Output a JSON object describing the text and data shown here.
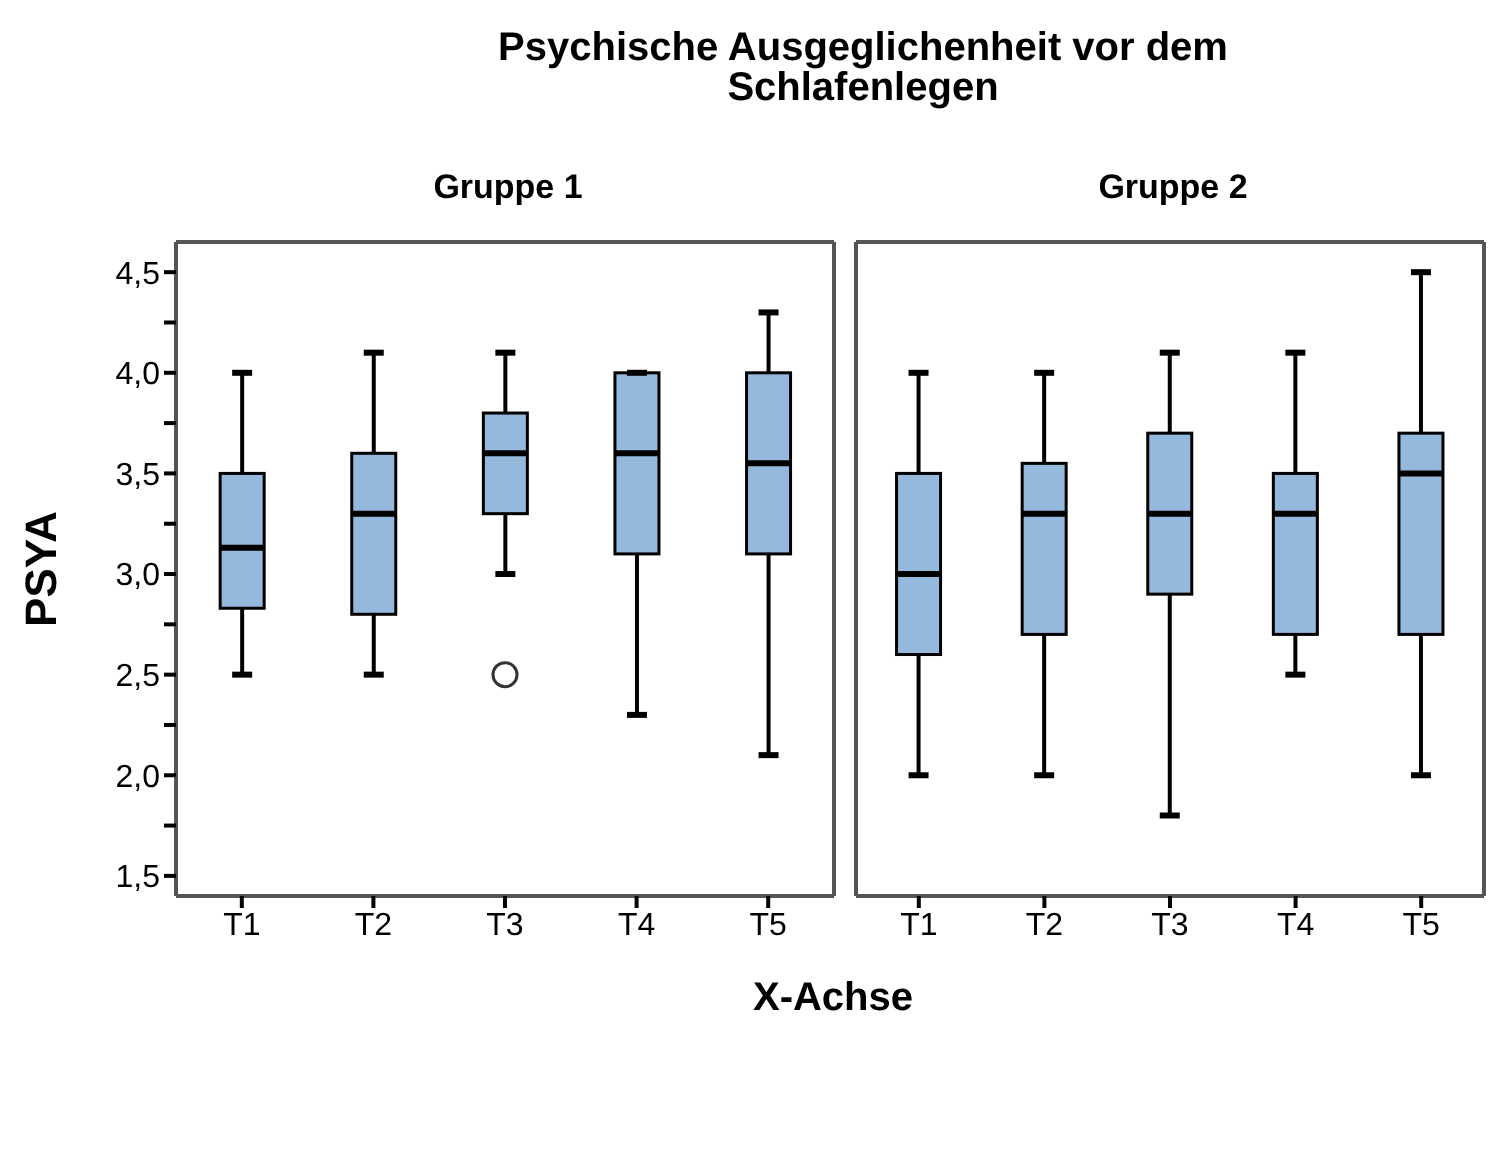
{
  "chart_data": [
    {
      "type": "box",
      "title": "Psychische Ausgeglichenheit vor dem Schlafenlegen",
      "subtitle": "Gruppe 1",
      "xlabel": "X-Achse",
      "ylabel": "PSYA",
      "categories": [
        "T1",
        "T2",
        "T3",
        "T4",
        "T5"
      ],
      "color": "#95b9dc",
      "boxes": [
        {
          "low": 2.5,
          "q1": 2.83,
          "median": 3.13,
          "q3": 3.5,
          "high": 4.0
        },
        {
          "low": 2.5,
          "q1": 2.8,
          "median": 3.3,
          "q3": 3.6,
          "high": 4.1
        },
        {
          "low": 3.0,
          "q1": 3.3,
          "median": 3.6,
          "q3": 3.8,
          "high": 4.1,
          "outliers": [
            2.5
          ]
        },
        {
          "low": 2.3,
          "q1": 3.1,
          "median": 3.6,
          "q3": 4.0,
          "high": 4.0
        },
        {
          "low": 2.1,
          "q1": 3.1,
          "median": 3.55,
          "q3": 4.0,
          "high": 4.3
        }
      ],
      "ylim": [
        1.4,
        4.65
      ],
      "yticks": [
        {
          "value": 1.5,
          "label": "1,5"
        },
        {
          "value": 1.75,
          "label": null
        },
        {
          "value": 2,
          "label": "2,0"
        },
        {
          "value": 2.25,
          "label": null
        },
        {
          "value": 2.5,
          "label": "2,5"
        },
        {
          "value": 2.75,
          "label": null
        },
        {
          "value": 3,
          "label": "3,0"
        },
        {
          "value": 3.25,
          "label": null
        },
        {
          "value": 3.5,
          "label": "3,5"
        },
        {
          "value": 3.75,
          "label": null
        },
        {
          "value": 4,
          "label": "4,0"
        },
        {
          "value": 4.25,
          "label": null
        },
        {
          "value": 4.5,
          "label": "4,5"
        }
      ]
    },
    {
      "type": "box",
      "subtitle": "Gruppe 2",
      "categories": [
        "T1",
        "T2",
        "T3",
        "T4",
        "T5"
      ],
      "color": "#95b9dc",
      "tick_labels": "x",
      "boxes": [
        {
          "low": 2.0,
          "q1": 2.6,
          "median": 3.0,
          "q3": 3.5,
          "high": 4.0
        },
        {
          "low": 2.0,
          "q1": 2.7,
          "median": 3.3,
          "q3": 3.55,
          "high": 4.0
        },
        {
          "low": 1.8,
          "q1": 2.9,
          "median": 3.3,
          "q3": 3.7,
          "high": 4.1
        },
        {
          "low": 2.5,
          "q1": 2.7,
          "median": 3.3,
          "q3": 3.5,
          "high": 4.1
        },
        {
          "low": 2.0,
          "q1": 2.7,
          "median": 3.5,
          "q3": 3.7,
          "high": 4.5
        }
      ],
      "ylim": [
        1.4,
        4.65
      ]
    }
  ]
}
